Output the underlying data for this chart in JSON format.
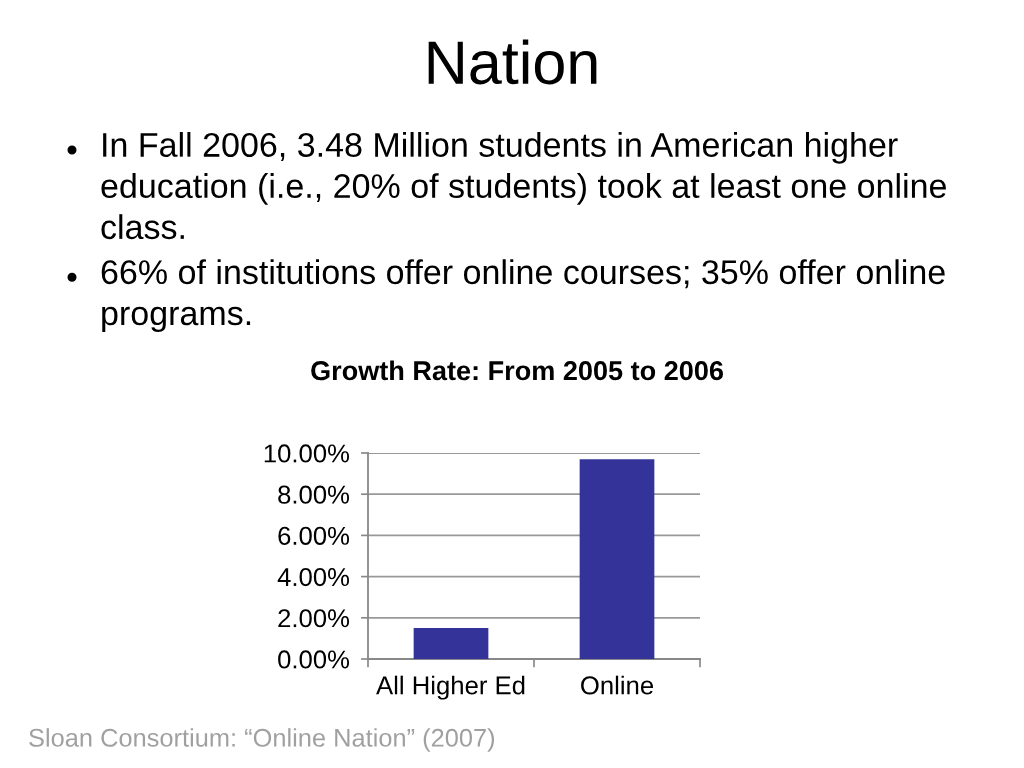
{
  "chart_data": {
    "type": "bar",
    "title": "Nation",
    "subtitle": "Growth Rate: From 2005 to 2006",
    "annotations": [
      "In Fall 2006, 3.48 Million students in American higher education (i.e., 20% of students) took at least one online class.",
      "66% of institutions offer online courses; 35% offer online programs.",
      "Sloan Consortium: “Online Nation” (2007)"
    ],
    "categories": [
      "All Higher Ed",
      "Online"
    ],
    "values": [
      1.5,
      9.7
    ],
    "color": "#333399",
    "ylim": [
      0,
      10
    ],
    "yticks": [
      {
        "value": 0,
        "label": "0.00%"
      },
      {
        "value": 2,
        "label": "2.00%"
      },
      {
        "value": 4,
        "label": "4.00%"
      },
      {
        "value": 6,
        "label": "6.00%"
      },
      {
        "value": 8,
        "label": "8.00%"
      },
      {
        "value": 10,
        "label": "10.00%"
      }
    ],
    "grid": "y"
  }
}
